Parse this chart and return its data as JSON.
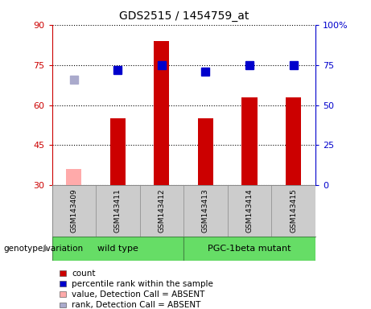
{
  "title": "GDS2515 / 1454759_at",
  "samples": [
    "GSM143409",
    "GSM143411",
    "GSM143412",
    "GSM143413",
    "GSM143414",
    "GSM143415"
  ],
  "counts": [
    36,
    55,
    84,
    55,
    63,
    63
  ],
  "ranks": [
    66,
    72,
    75,
    71,
    75,
    75
  ],
  "absent_flags": [
    true,
    false,
    false,
    false,
    false,
    false
  ],
  "ylim_left": [
    30,
    90
  ],
  "ylim_right": [
    0,
    100
  ],
  "left_ticks": [
    30,
    45,
    60,
    75,
    90
  ],
  "right_ticks": [
    0,
    25,
    50,
    75,
    100
  ],
  "right_tick_labels": [
    "0",
    "25",
    "50",
    "75",
    "100%"
  ],
  "bar_color_normal": "#cc0000",
  "bar_color_absent": "#ffaaaa",
  "rank_color_normal": "#0000cc",
  "rank_color_absent": "#aaaacc",
  "wild_type_label": "wild type",
  "mutant_label": "PGC-1beta mutant",
  "genotype_label": "genotype/variation",
  "legend_items": [
    {
      "label": "count",
      "color": "#cc0000"
    },
    {
      "label": "percentile rank within the sample",
      "color": "#0000cc"
    },
    {
      "label": "value, Detection Call = ABSENT",
      "color": "#ffaaaa"
    },
    {
      "label": "rank, Detection Call = ABSENT",
      "color": "#aaaacc"
    }
  ],
  "bar_width": 0.35,
  "rank_marker_size": 7,
  "left_axis_color": "#cc0000",
  "right_axis_color": "#0000cc",
  "sample_box_color": "#cccccc",
  "green_color": "#66dd66",
  "green_border_color": "#448844"
}
